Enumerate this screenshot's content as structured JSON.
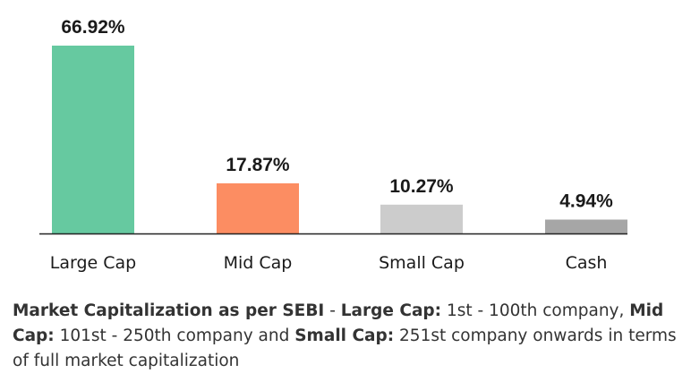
{
  "chart_data": {
    "type": "bar",
    "categories": [
      "Large Cap",
      "Mid Cap",
      "Small Cap",
      "Cash"
    ],
    "values": [
      66.92,
      17.87,
      10.27,
      4.94
    ],
    "data_labels": [
      "66.92%",
      "17.87%",
      "10.27%",
      "4.94%"
    ],
    "colors": [
      "#66c9a0",
      "#fc8d62",
      "#cccccc",
      "#a6a6a6"
    ],
    "axis_color": "#222222",
    "title": "",
    "xlabel": "",
    "ylabel": "",
    "ylim": [
      0,
      66.92
    ],
    "grid": false,
    "legend": "none"
  },
  "footnote": {
    "lead_bold": "Market Capitalization as per SEBI",
    "sep": " - ",
    "large_bold": "Large Cap:",
    "large_text": " 1st - 100th company, ",
    "mid_bold": "Mid Cap:",
    "mid_text": " 101st - 250th company and ",
    "small_bold": "Small Cap:",
    "small_text": " 251st company onwards in terms of full market capitalization"
  }
}
